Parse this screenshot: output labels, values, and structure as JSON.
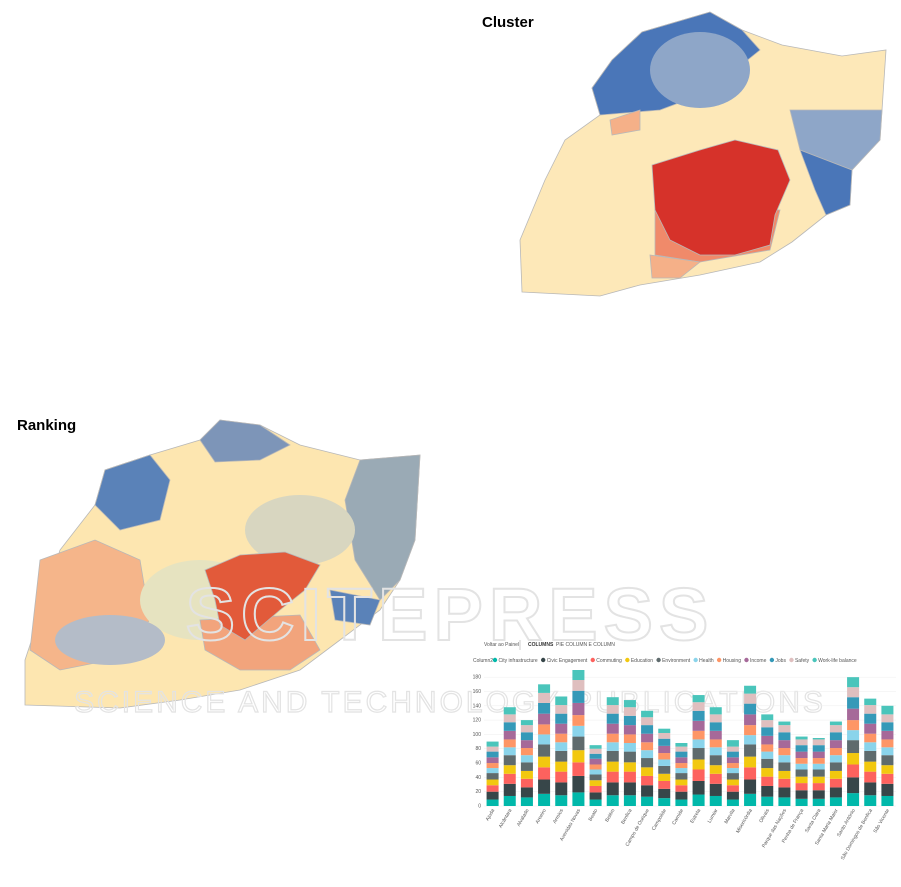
{
  "cluster": {
    "title": "Cluster"
  },
  "ranking": {
    "title": "Ranking"
  },
  "watermark": {
    "line1": "SCITEPRESS",
    "line2": "SCIENCE AND TECHNOLOGY PUBLICATIONS"
  },
  "panel": {
    "back": "Voltar ao Painel",
    "tabs": [
      "COLUMNS",
      "PIE COLUMN E COLUMN"
    ]
  },
  "chart_data": {
    "type": "stacked-bar",
    "legend_title": "Column2",
    "categories": [
      "Ajuda",
      "Alcântara",
      "Alvalade",
      "Areeiro",
      "Arroios",
      "Avenidas Novas",
      "Beato",
      "Belém",
      "Benfica",
      "Campo de Ourique",
      "Campolide",
      "Carnide",
      "Estrela",
      "Lumiar",
      "Marvila",
      "Misericórdia",
      "Olivais",
      "Parque das Nações",
      "Penha de França",
      "Santa Clara",
      "Santa Maria Maior",
      "Santo António",
      "São Domingos de Benfica",
      "São Vicente"
    ],
    "series": [
      {
        "name": "City infrastructure",
        "color": "#01b8aa",
        "values": [
          9,
          14,
          12,
          17,
          15,
          19,
          9,
          15,
          15,
          13,
          11,
          9,
          16,
          14,
          9,
          17,
          13,
          12,
          10,
          10,
          12,
          18,
          15,
          14
        ]
      },
      {
        "name": "Civic Engagement",
        "color": "#374649",
        "values": [
          11,
          17,
          14,
          20,
          18,
          23,
          10,
          18,
          18,
          16,
          13,
          11,
          19,
          17,
          11,
          20,
          15,
          14,
          12,
          12,
          14,
          22,
          18,
          17
        ]
      },
      {
        "name": "Commuting",
        "color": "#fd625e",
        "values": [
          9,
          14,
          12,
          17,
          15,
          19,
          9,
          15,
          15,
          13,
          11,
          9,
          16,
          14,
          9,
          17,
          13,
          12,
          10,
          10,
          12,
          18,
          15,
          14
        ]
      },
      {
        "name": "Education",
        "color": "#f2c80f",
        "values": [
          8,
          12,
          11,
          15,
          14,
          17,
          8,
          14,
          13,
          12,
          10,
          8,
          14,
          12,
          8,
          15,
          12,
          11,
          9,
          9,
          11,
          16,
          14,
          12
        ]
      },
      {
        "name": "Environment",
        "color": "#5f6b6d",
        "values": [
          9,
          14,
          12,
          17,
          15,
          19,
          8,
          15,
          15,
          13,
          11,
          9,
          16,
          14,
          9,
          17,
          13,
          12,
          10,
          10,
          12,
          18,
          15,
          14
        ]
      },
      {
        "name": "Health",
        "color": "#8ad4eb",
        "values": [
          7,
          11,
          10,
          14,
          12,
          15,
          7,
          12,
          12,
          11,
          9,
          7,
          12,
          11,
          7,
          13,
          10,
          10,
          8,
          8,
          10,
          14,
          12,
          11
        ]
      },
      {
        "name": "Housing",
        "color": "#fe9666",
        "values": [
          7,
          11,
          10,
          14,
          12,
          15,
          7,
          12,
          12,
          11,
          9,
          7,
          12,
          11,
          7,
          14,
          10,
          10,
          8,
          8,
          10,
          14,
          12,
          11
        ]
      },
      {
        "name": "Income",
        "color": "#a66999",
        "values": [
          8,
          12,
          11,
          15,
          14,
          17,
          8,
          14,
          13,
          12,
          10,
          8,
          14,
          12,
          8,
          15,
          12,
          11,
          9,
          9,
          11,
          16,
          14,
          12
        ]
      },
      {
        "name": "Jobs",
        "color": "#3599b8",
        "values": [
          8,
          12,
          11,
          15,
          14,
          17,
          7,
          14,
          13,
          12,
          10,
          8,
          14,
          12,
          8,
          15,
          12,
          11,
          9,
          9,
          11,
          16,
          14,
          12
        ]
      },
      {
        "name": "Safety",
        "color": "#dfbfbf",
        "values": [
          7,
          11,
          10,
          14,
          12,
          15,
          7,
          12,
          12,
          11,
          8,
          7,
          12,
          11,
          7,
          14,
          10,
          10,
          8,
          8,
          10,
          14,
          12,
          11
        ]
      },
      {
        "name": "Work-life balance",
        "color": "#4ac5bb",
        "values": [
          7,
          10,
          7,
          12,
          12,
          14,
          5,
          11,
          10,
          9,
          6,
          5,
          10,
          10,
          9,
          11,
          8,
          5,
          4,
          2,
          5,
          14,
          9,
          12
        ]
      }
    ],
    "ylim": [
      0,
      190
    ],
    "yticks": [
      0,
      20,
      40,
      60,
      80,
      100,
      120,
      140,
      160,
      180
    ],
    "grid": true
  }
}
